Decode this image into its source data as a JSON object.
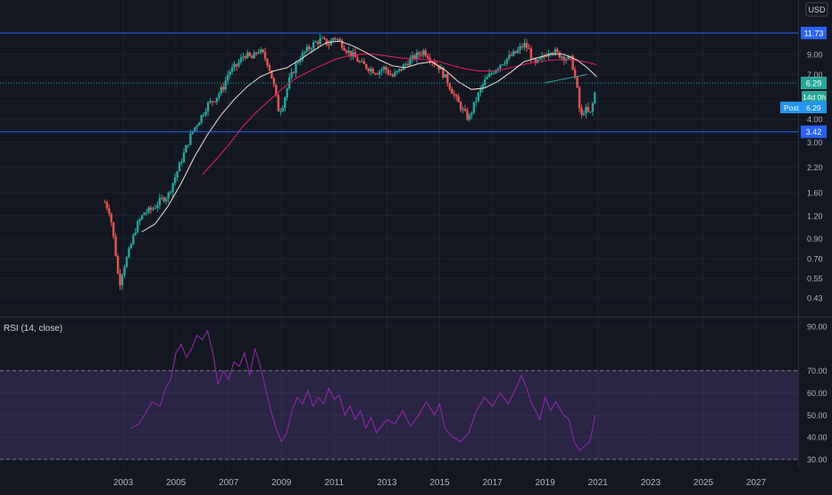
{
  "currency_label": "USD",
  "price_axis": {
    "ticks": [
      "9.00",
      "7.00",
      "5.00",
      "4.00",
      "3.00",
      "2.20",
      "1.60",
      "1.20",
      "0.90",
      "0.70",
      "0.55",
      "0.43"
    ],
    "tick_values": [
      9.0,
      7.0,
      5.0,
      4.0,
      3.0,
      2.2,
      1.6,
      1.2,
      0.9,
      0.7,
      0.55,
      0.43
    ]
  },
  "price_markers": [
    {
      "label": "11.73",
      "value": 11.73,
      "color": "#2962ff",
      "style": "solid"
    },
    {
      "label": "6.29",
      "value": 6.29,
      "color": "#26a69a",
      "style": "dotted"
    },
    {
      "label": "3.42",
      "value": 3.42,
      "color": "#2962ff",
      "style": "solid"
    }
  ],
  "countdown_label": "14d 0h",
  "post_label": "Post",
  "post_value": "6.29",
  "rsi": {
    "title": "RSI (14, close)",
    "ticks": [
      "90.00",
      "70.00",
      "60.00",
      "50.00",
      "40.00",
      "30.00"
    ],
    "tick_values": [
      90,
      70,
      60,
      50,
      40,
      30
    ],
    "band": [
      30,
      70
    ],
    "line_color": "#9c27b0",
    "band_color": "#7e57c2",
    "points": [
      [
        2003.3,
        44
      ],
      [
        2003.6,
        46
      ],
      [
        2003.9,
        52
      ],
      [
        2004.1,
        56
      ],
      [
        2004.4,
        54
      ],
      [
        2004.6,
        62
      ],
      [
        2004.8,
        66
      ],
      [
        2005.0,
        78
      ],
      [
        2005.2,
        82
      ],
      [
        2005.4,
        76
      ],
      [
        2005.6,
        80
      ],
      [
        2005.8,
        86
      ],
      [
        2006.0,
        84
      ],
      [
        2006.2,
        88
      ],
      [
        2006.4,
        78
      ],
      [
        2006.6,
        64
      ],
      [
        2006.8,
        70
      ],
      [
        2007.0,
        66
      ],
      [
        2007.2,
        74
      ],
      [
        2007.4,
        72
      ],
      [
        2007.6,
        78
      ],
      [
        2007.8,
        68
      ],
      [
        2008.0,
        80
      ],
      [
        2008.2,
        72
      ],
      [
        2008.4,
        62
      ],
      [
        2008.6,
        52
      ],
      [
        2008.8,
        44
      ],
      [
        2009.0,
        38
      ],
      [
        2009.2,
        42
      ],
      [
        2009.4,
        52
      ],
      [
        2009.6,
        58
      ],
      [
        2009.8,
        55
      ],
      [
        2010.0,
        61
      ],
      [
        2010.2,
        54
      ],
      [
        2010.4,
        58
      ],
      [
        2010.6,
        55
      ],
      [
        2010.8,
        62
      ],
      [
        2011.0,
        57
      ],
      [
        2011.2,
        59
      ],
      [
        2011.4,
        50
      ],
      [
        2011.6,
        54
      ],
      [
        2011.8,
        48
      ],
      [
        2012.0,
        52
      ],
      [
        2012.2,
        44
      ],
      [
        2012.4,
        49
      ],
      [
        2012.6,
        42
      ],
      [
        2012.8,
        45
      ],
      [
        2013.0,
        48
      ],
      [
        2013.3,
        46
      ],
      [
        2013.6,
        52
      ],
      [
        2013.9,
        45
      ],
      [
        2014.2,
        50
      ],
      [
        2014.5,
        56
      ],
      [
        2014.8,
        50
      ],
      [
        2015.0,
        55
      ],
      [
        2015.2,
        44
      ],
      [
        2015.5,
        40
      ],
      [
        2015.8,
        38
      ],
      [
        2016.1,
        42
      ],
      [
        2016.4,
        52
      ],
      [
        2016.7,
        58
      ],
      [
        2017.0,
        54
      ],
      [
        2017.3,
        60
      ],
      [
        2017.6,
        55
      ],
      [
        2017.9,
        62
      ],
      [
        2018.1,
        68
      ],
      [
        2018.3,
        62
      ],
      [
        2018.5,
        55
      ],
      [
        2018.8,
        48
      ],
      [
        2019.0,
        58
      ],
      [
        2019.2,
        52
      ],
      [
        2019.4,
        56
      ],
      [
        2019.7,
        50
      ],
      [
        2019.9,
        48
      ],
      [
        2020.1,
        38
      ],
      [
        2020.3,
        34
      ],
      [
        2020.5,
        36
      ],
      [
        2020.7,
        38
      ],
      [
        2020.9,
        50
      ]
    ]
  },
  "x_axis": {
    "ticks": [
      "2003",
      "2005",
      "2007",
      "2009",
      "2011",
      "2013",
      "2015",
      "2017",
      "2019",
      "2021",
      "2023",
      "2025",
      "2027"
    ]
  },
  "chart_data": {
    "type": "candlestick",
    "y_scale": "log",
    "x_range": [
      2000.8,
      2027.6
    ],
    "ylim": [
      0.38,
      13.5
    ],
    "grid": true,
    "colors": {
      "up": "#26a69a",
      "down": "#ef5350",
      "ma_fast": "#f0e6d2",
      "ma_slow": "#e91e63"
    },
    "close_path": [
      [
        2002.3,
        1.42
      ],
      [
        2002.5,
        1.25
      ],
      [
        2002.7,
        0.78
      ],
      [
        2002.85,
        0.5
      ],
      [
        2003.0,
        0.62
      ],
      [
        2003.2,
        0.75
      ],
      [
        2003.5,
        1.05
      ],
      [
        2003.8,
        1.25
      ],
      [
        2004.1,
        1.3
      ],
      [
        2004.4,
        1.45
      ],
      [
        2004.7,
        1.55
      ],
      [
        2005.0,
        2.0
      ],
      [
        2005.3,
        2.6
      ],
      [
        2005.6,
        3.4
      ],
      [
        2005.9,
        4.0
      ],
      [
        2006.2,
        4.8
      ],
      [
        2006.5,
        5.2
      ],
      [
        2006.8,
        6.0
      ],
      [
        2007.0,
        7.2
      ],
      [
        2007.3,
        7.8
      ],
      [
        2007.6,
        9.0
      ],
      [
        2007.9,
        8.5
      ],
      [
        2008.1,
        9.5
      ],
      [
        2008.3,
        9.0
      ],
      [
        2008.5,
        8.0
      ],
      [
        2008.7,
        6.2
      ],
      [
        2008.9,
        4.4
      ],
      [
        2009.05,
        4.8
      ],
      [
        2009.3,
        6.5
      ],
      [
        2009.6,
        8.2
      ],
      [
        2009.9,
        9.3
      ],
      [
        2010.2,
        10.2
      ],
      [
        2010.5,
        10.8
      ],
      [
        2010.8,
        10.2
      ],
      [
        2011.0,
        11.2
      ],
      [
        2011.2,
        10.6
      ],
      [
        2011.5,
        9.4
      ],
      [
        2011.8,
        8.6
      ],
      [
        2012.0,
        8.0
      ],
      [
        2012.3,
        7.6
      ],
      [
        2012.6,
        7.2
      ],
      [
        2012.9,
        7.6
      ],
      [
        2013.2,
        6.8
      ],
      [
        2013.5,
        7.4
      ],
      [
        2013.8,
        8.2
      ],
      [
        2014.1,
        8.8
      ],
      [
        2014.4,
        9.4
      ],
      [
        2014.7,
        8.4
      ],
      [
        2015.0,
        7.6
      ],
      [
        2015.3,
        6.4
      ],
      [
        2015.6,
        5.2
      ],
      [
        2015.9,
        4.4
      ],
      [
        2016.1,
        4.0
      ],
      [
        2016.4,
        5.2
      ],
      [
        2016.7,
        6.4
      ],
      [
        2017.0,
        7.2
      ],
      [
        2017.3,
        8.0
      ],
      [
        2017.6,
        8.6
      ],
      [
        2017.9,
        9.2
      ],
      [
        2018.2,
        10.2
      ],
      [
        2018.4,
        9.4
      ],
      [
        2018.6,
        7.8
      ],
      [
        2018.9,
        8.6
      ],
      [
        2019.2,
        9.6
      ],
      [
        2019.5,
        9.0
      ],
      [
        2019.8,
        8.6
      ],
      [
        2020.0,
        8.4
      ],
      [
        2020.2,
        6.0
      ],
      [
        2020.35,
        4.0
      ],
      [
        2020.5,
        4.6
      ],
      [
        2020.7,
        4.2
      ],
      [
        2020.85,
        5.2
      ],
      [
        2020.95,
        6.29
      ]
    ],
    "ma_fast_path": [
      [
        2003.7,
        0.98
      ],
      [
        2004.2,
        1.08
      ],
      [
        2004.7,
        1.35
      ],
      [
        2005.2,
        1.8
      ],
      [
        2005.7,
        2.5
      ],
      [
        2006.2,
        3.3
      ],
      [
        2006.7,
        4.2
      ],
      [
        2007.2,
        5.1
      ],
      [
        2007.7,
        6.0
      ],
      [
        2008.2,
        6.8
      ],
      [
        2008.7,
        7.3
      ],
      [
        2009.2,
        7.6
      ],
      [
        2009.7,
        8.4
      ],
      [
        2010.2,
        9.4
      ],
      [
        2010.7,
        10.4
      ],
      [
        2011.2,
        10.6
      ],
      [
        2011.7,
        10.0
      ],
      [
        2012.2,
        9.2
      ],
      [
        2012.7,
        8.4
      ],
      [
        2013.2,
        7.8
      ],
      [
        2013.7,
        7.6
      ],
      [
        2014.2,
        8.0
      ],
      [
        2014.7,
        8.2
      ],
      [
        2015.2,
        7.4
      ],
      [
        2015.7,
        6.4
      ],
      [
        2016.2,
        5.8
      ],
      [
        2016.7,
        5.9
      ],
      [
        2017.2,
        6.4
      ],
      [
        2017.7,
        7.2
      ],
      [
        2018.2,
        8.2
      ],
      [
        2018.7,
        8.6
      ],
      [
        2019.2,
        9.0
      ],
      [
        2019.7,
        9.0
      ],
      [
        2020.2,
        8.4
      ],
      [
        2020.6,
        7.6
      ],
      [
        2020.95,
        6.8
      ]
    ],
    "ma_slow_path": [
      [
        2006.0,
        2.0
      ],
      [
        2006.5,
        2.4
      ],
      [
        2007.0,
        2.9
      ],
      [
        2007.5,
        3.6
      ],
      [
        2008.0,
        4.3
      ],
      [
        2008.5,
        5.0
      ],
      [
        2009.0,
        5.8
      ],
      [
        2009.5,
        6.6
      ],
      [
        2010.0,
        7.2
      ],
      [
        2010.5,
        7.8
      ],
      [
        2011.0,
        8.4
      ],
      [
        2011.5,
        8.8
      ],
      [
        2012.0,
        9.0
      ],
      [
        2012.5,
        9.0
      ],
      [
        2013.0,
        8.8
      ],
      [
        2013.5,
        8.6
      ],
      [
        2014.0,
        8.5
      ],
      [
        2014.5,
        8.4
      ],
      [
        2015.0,
        8.2
      ],
      [
        2015.5,
        7.8
      ],
      [
        2016.0,
        7.5
      ],
      [
        2016.5,
        7.3
      ],
      [
        2017.0,
        7.3
      ],
      [
        2017.5,
        7.5
      ],
      [
        2018.0,
        7.8
      ],
      [
        2018.5,
        8.1
      ],
      [
        2019.0,
        8.3
      ],
      [
        2019.5,
        8.4
      ],
      [
        2020.0,
        8.4
      ],
      [
        2020.5,
        8.2
      ],
      [
        2020.95,
        7.9
      ]
    ],
    "teal_line": [
      [
        2019.0,
        6.3
      ],
      [
        2020.6,
        7.0
      ]
    ]
  }
}
